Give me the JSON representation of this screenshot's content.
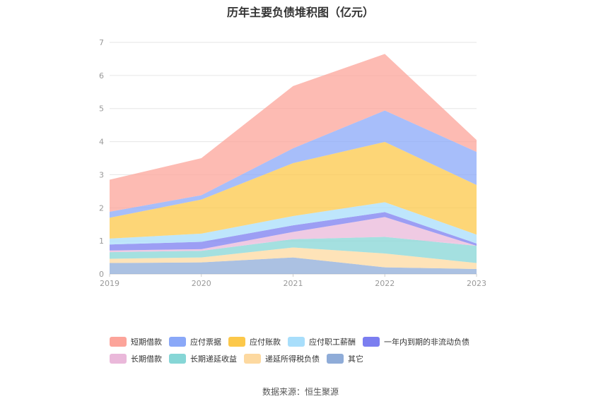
{
  "title": "历年主要负债堆积图（亿元）",
  "source": "数据来源：恒生聚源",
  "chart_data": {
    "type": "area",
    "stacked": true,
    "x": [
      "2019",
      "2020",
      "2021",
      "2022",
      "2023"
    ],
    "y_ticks": [
      "0",
      "1",
      "2",
      "3",
      "4",
      "5",
      "6",
      "7"
    ],
    "ylim": [
      0,
      7
    ],
    "grid": true,
    "legend_position": "bottom",
    "series": [
      {
        "name": "其它",
        "color": "#8facd8",
        "values": [
          0.33,
          0.35,
          0.5,
          0.2,
          0.15
        ]
      },
      {
        "name": "递延所得税负债",
        "color": "#fdd9a0",
        "values": [
          0.13,
          0.15,
          0.3,
          0.42,
          0.18
        ]
      },
      {
        "name": "长期递延收益",
        "color": "#86d6d6",
        "values": [
          0.2,
          0.2,
          0.25,
          0.5,
          0.52
        ]
      },
      {
        "name": "长期借款",
        "color": "#eab8da",
        "values": [
          0.05,
          0.05,
          0.22,
          0.6,
          0.0
        ]
      },
      {
        "name": "一年内到期的非流动负债",
        "color": "#7b7ef0",
        "values": [
          0.18,
          0.22,
          0.2,
          0.15,
          0.07
        ]
      },
      {
        "name": "应付职工薪酬",
        "color": "#a8defb",
        "values": [
          0.18,
          0.25,
          0.28,
          0.3,
          0.27
        ]
      },
      {
        "name": "应付账款",
        "color": "#fcc84a",
        "values": [
          0.63,
          1.03,
          1.6,
          1.82,
          1.5
        ]
      },
      {
        "name": "应付票据",
        "color": "#8aa8f8",
        "values": [
          0.18,
          0.13,
          0.45,
          0.95,
          1.0
        ]
      },
      {
        "name": "短期借款",
        "color": "#fca49a",
        "values": [
          0.97,
          1.12,
          1.88,
          1.71,
          0.36
        ]
      }
    ],
    "legend_rows": [
      [
        "短期借款",
        "应付票据",
        "应付账款",
        "应付职工薪酬",
        "一年内到期的非流动负债"
      ],
      [
        "长期借款",
        "长期递延收益",
        "递延所得税负债",
        "其它"
      ]
    ]
  }
}
